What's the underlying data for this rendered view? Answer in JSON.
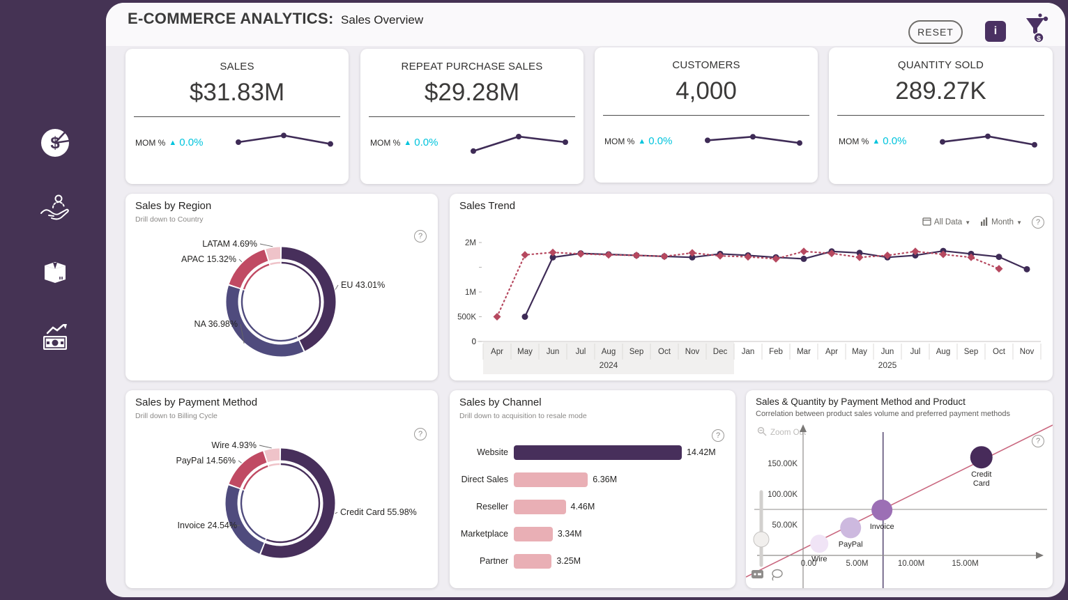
{
  "colors": {
    "frame": "#453354",
    "content_bg": "#EFEDF2",
    "header_bg": "#FAF9FB",
    "card": "#FFFFFF",
    "accent_dark": "#472F5B",
    "accent_slate": "#4F4B7D",
    "accent_crimson": "#C04A63",
    "accent_pink": "#EFC3C9",
    "bar_pink": "#E9AFB5",
    "cyan": "#00C4DD",
    "line_purple": "#3E2B56",
    "line_red": "#B6485F",
    "scatter_trend": "#C9677F",
    "text": "#252423",
    "muted": "#8a8886"
  },
  "sidebar": {
    "items": [
      {
        "name": "sales",
        "icon": "pie-dollar-icon"
      },
      {
        "name": "customers",
        "icon": "customer-hand-icon"
      },
      {
        "name": "products",
        "icon": "product-box-icon"
      },
      {
        "name": "revenue",
        "icon": "cash-growth-icon"
      }
    ]
  },
  "header": {
    "title_bold": "E-COMMERCE ANALYTICS:",
    "title_regular": "Sales Overview",
    "reset_label": "RESET",
    "info_label": "i"
  },
  "kpis": [
    {
      "label": "SALES",
      "value": "$31.83M",
      "mom_label": "MOM %",
      "mom_arrow": "▲",
      "mom_value": "0.0%",
      "spark": [
        0.5,
        0.8,
        0.42
      ]
    },
    {
      "label": "REPEAT PURCHASE SALES",
      "value": "$29.28M",
      "mom_label": "MOM %",
      "mom_arrow": "▲",
      "mom_value": "0.0%",
      "spark": [
        0.1,
        0.75,
        0.5
      ]
    },
    {
      "label": "CUSTOMERS",
      "value": "4,000",
      "mom_label": "MOM %",
      "mom_arrow": "▲",
      "mom_value": "0.0%",
      "spark": [
        0.52,
        0.68,
        0.4
      ]
    },
    {
      "label": "QUANTITY SOLD",
      "value": "289.27K",
      "mom_label": "MOM %",
      "mom_arrow": "▲",
      "mom_value": "0.0%",
      "spark": [
        0.45,
        0.7,
        0.32
      ]
    }
  ],
  "region": {
    "title": "Sales by Region",
    "subtitle": "Drill down to Country",
    "chart_data": {
      "type": "pie",
      "slices": [
        {
          "label": "EU",
          "pct": 43.01,
          "color": "#472F5B"
        },
        {
          "label": "NA",
          "pct": 36.98,
          "color": "#4F4B7D"
        },
        {
          "label": "APAC",
          "pct": 15.32,
          "color": "#C04A63"
        },
        {
          "label": "LATAM",
          "pct": 4.69,
          "color": "#EFC3C9"
        }
      ]
    }
  },
  "trend": {
    "title": "Sales Trend",
    "controls": {
      "date_filter": "All Data",
      "granularity": "Month"
    },
    "chart_data": {
      "type": "line",
      "ylim": [
        0,
        2000000
      ],
      "y_ticks": [
        {
          "v": 2,
          "label": "2M"
        },
        {
          "v": 1.5,
          "label": ""
        },
        {
          "v": 1,
          "label": "1M"
        },
        {
          "v": 0.5,
          "label": "500K"
        },
        {
          "v": 0,
          "label": "0"
        }
      ],
      "months": [
        "Apr",
        "May",
        "Jun",
        "Jul",
        "Aug",
        "Sep",
        "Oct",
        "Nov",
        "Dec",
        "Jan",
        "Feb",
        "Mar",
        "Apr",
        "May",
        "Jun",
        "Jul",
        "Aug",
        "Sep",
        "Oct",
        "Nov"
      ],
      "years": [
        {
          "label": "2024",
          "span": 9,
          "shaded": true
        },
        {
          "label": "2025",
          "span": 11,
          "shaded": false
        }
      ],
      "series": [
        {
          "name": "sales",
          "style": "solid",
          "marker": "circle",
          "color": "#3E2B56",
          "values_M": [
            null,
            0.5,
            1.7,
            1.78,
            1.76,
            1.74,
            1.72,
            1.7,
            1.77,
            1.74,
            1.7,
            1.67,
            1.82,
            1.79,
            1.7,
            1.74,
            1.83,
            1.77,
            1.71,
            1.46
          ]
        },
        {
          "name": "prior-period",
          "style": "dotted",
          "marker": "diamond",
          "color": "#B6485F",
          "values_M": [
            0.5,
            1.75,
            1.8,
            1.77,
            1.75,
            1.74,
            1.72,
            1.79,
            1.73,
            1.71,
            1.67,
            1.82,
            1.78,
            1.7,
            1.74,
            1.82,
            1.76,
            1.7,
            1.47,
            null
          ]
        }
      ]
    }
  },
  "payment": {
    "title": "Sales by Payment Method",
    "subtitle": "Drill down to Billing Cycle",
    "chart_data": {
      "type": "pie",
      "slices": [
        {
          "label": "Credit Card",
          "pct": 55.98,
          "color": "#472F5B"
        },
        {
          "label": "Invoice",
          "pct": 24.54,
          "color": "#4F4B7D"
        },
        {
          "label": "PayPal",
          "pct": 14.56,
          "color": "#C04A63"
        },
        {
          "label": "Wire",
          "pct": 4.93,
          "color": "#EFC3C9"
        }
      ]
    }
  },
  "channel": {
    "title": "Sales by Channel",
    "subtitle": "Drill down to acquisition to resale mode",
    "chart_data": {
      "type": "bar",
      "max_M": 14.42,
      "bars": [
        {
          "label": "Website",
          "value_label": "14.42M",
          "v": 14.42,
          "color": "#472F5B"
        },
        {
          "label": "Direct Sales",
          "value_label": "6.36M",
          "v": 6.36,
          "color": "#E9AFB5"
        },
        {
          "label": "Reseller",
          "value_label": "4.46M",
          "v": 4.46,
          "color": "#E9AFB5"
        },
        {
          "label": "Marketplace",
          "value_label": "3.34M",
          "v": 3.34,
          "color": "#E9AFB5"
        },
        {
          "label": "Partner",
          "value_label": "3.25M",
          "v": 3.25,
          "color": "#E9AFB5"
        }
      ]
    }
  },
  "scatter": {
    "title": "Sales & Quantity by Payment Method and Product",
    "subtitle": "Correlation between product sales volume and preferred payment methods",
    "zoom_out_label": "Zoom Out",
    "chart_data": {
      "type": "scatter",
      "x_ticks": [
        {
          "v": 0,
          "label": "0.00"
        },
        {
          "v": 5,
          "label": "5.00M"
        },
        {
          "v": 10,
          "label": "10.00M"
        },
        {
          "v": 15,
          "label": "15.00M"
        }
      ],
      "y_ticks": [
        {
          "v": 50,
          "label": "50.00K"
        },
        {
          "v": 100,
          "label": "100.00K"
        },
        {
          "v": 150,
          "label": "150.00K"
        }
      ],
      "points": [
        {
          "label": "Wire",
          "x_M": 1.5,
          "y_K": 19,
          "r": 13,
          "color": "#F0E4F6"
        },
        {
          "label": "PayPal",
          "x_M": 4.4,
          "y_K": 45,
          "r": 15,
          "color": "#CDB9DF"
        },
        {
          "label": "Invoice",
          "x_M": 7.3,
          "y_K": 74,
          "r": 15,
          "color": "#9C6FB5"
        },
        {
          "label": "Credit Card",
          "x_M": 16.5,
          "y_K": 160,
          "r": 16,
          "color": "#472B5A"
        }
      ],
      "avg_x_M": 7.4,
      "avg_y_K": 75
    }
  }
}
